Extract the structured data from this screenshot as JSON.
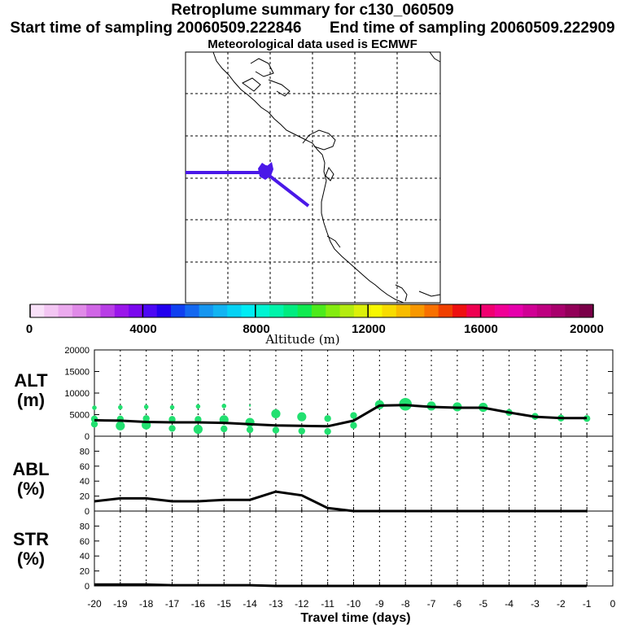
{
  "header": {
    "title": "Retroplume summary for c130_060509",
    "start_label": "Start time of sampling",
    "start_value": "20060509.222846",
    "end_label": "End time of sampling",
    "end_value": "20060509.222909",
    "met_line": "Meteorological data used is ECMWF"
  },
  "colorbar": {
    "title": "Altitude (m)",
    "min": 0,
    "max": 20000,
    "tick_labels": [
      "0",
      "4000",
      "8000",
      "12000",
      "16000",
      "20000"
    ],
    "colors": [
      "#f9e1f9",
      "#f3c6f3",
      "#ebaaee",
      "#e08ae8",
      "#d066e6",
      "#b83ee6",
      "#9a16ea",
      "#7a08ee",
      "#4c08f4",
      "#2200ee",
      "#1040f0",
      "#1468f0",
      "#1696f0",
      "#12b4f2",
      "#06d2f4",
      "#00ecf4",
      "#00f4d2",
      "#00f4aa",
      "#00ec80",
      "#10ea50",
      "#4cea1c",
      "#84ec10",
      "#b4ec10",
      "#dcf00a",
      "#f8f800",
      "#f8dc00",
      "#f8bc00",
      "#f89800",
      "#f87000",
      "#f04000",
      "#ee1010",
      "#ee0050",
      "#f00070",
      "#f00096",
      "#e600ac",
      "#d00094",
      "#be0080",
      "#a8006c",
      "#920058",
      "#7a0048"
    ]
  },
  "map": {
    "trajectory_color": "#4a18e8"
  },
  "chart_data": [
    {
      "type": "scatter",
      "panel": "ALT",
      "ylabel_line1": "ALT",
      "ylabel_line2": "(m)",
      "ylim": [
        0,
        20000
      ],
      "yticks": [
        0,
        5000,
        10000,
        15000,
        20000
      ],
      "xlim": [
        -20,
        0
      ],
      "median_line_color": "#000000",
      "dot_color": "#22e070",
      "line": {
        "x": [
          -20,
          -19,
          -18,
          -17,
          -16,
          -15,
          -14,
          -13,
          -12,
          -11,
          -10,
          -9,
          -8,
          -7,
          -6,
          -5,
          -4,
          -3,
          -2,
          -1
        ],
        "y": [
          3700,
          3600,
          3300,
          3200,
          3200,
          3100,
          2800,
          2500,
          2400,
          2300,
          3600,
          7100,
          7200,
          6800,
          6600,
          6600,
          5500,
          4500,
          4200,
          4200
        ]
      },
      "points": [
        {
          "x": -20,
          "y": 6600,
          "s": 1
        },
        {
          "x": -20,
          "y": 4000,
          "s": 2
        },
        {
          "x": -20,
          "y": 2800,
          "s": 2
        },
        {
          "x": -19,
          "y": 6700,
          "s": 1
        },
        {
          "x": -19,
          "y": 4000,
          "s": 2
        },
        {
          "x": -19,
          "y": 2400,
          "s": 3
        },
        {
          "x": -18,
          "y": 6800,
          "s": 1
        },
        {
          "x": -18,
          "y": 4100,
          "s": 2
        },
        {
          "x": -18,
          "y": 2600,
          "s": 3
        },
        {
          "x": -17,
          "y": 6700,
          "s": 1
        },
        {
          "x": -17,
          "y": 3900,
          "s": 2
        },
        {
          "x": -17,
          "y": 1800,
          "s": 2
        },
        {
          "x": -16,
          "y": 6900,
          "s": 1
        },
        {
          "x": -16,
          "y": 3900,
          "s": 2
        },
        {
          "x": -16,
          "y": 1600,
          "s": 3
        },
        {
          "x": -15,
          "y": 7000,
          "s": 1
        },
        {
          "x": -15,
          "y": 3800,
          "s": 3
        },
        {
          "x": -15,
          "y": 1700,
          "s": 2
        },
        {
          "x": -14,
          "y": 7100,
          "s": 0
        },
        {
          "x": -14,
          "y": 3200,
          "s": 3
        },
        {
          "x": -14,
          "y": 1500,
          "s": 2
        },
        {
          "x": -13,
          "y": 5200,
          "s": 3
        },
        {
          "x": -13,
          "y": 1400,
          "s": 2
        },
        {
          "x": -12,
          "y": 4500,
          "s": 3
        },
        {
          "x": -12,
          "y": 1200,
          "s": 2
        },
        {
          "x": -11,
          "y": 4100,
          "s": 2
        },
        {
          "x": -11,
          "y": 1100,
          "s": 2
        },
        {
          "x": -10,
          "y": 4800,
          "s": 2
        },
        {
          "x": -10,
          "y": 2500,
          "s": 2
        },
        {
          "x": -9,
          "y": 7300,
          "s": 3
        },
        {
          "x": -8,
          "y": 7400,
          "s": 4
        },
        {
          "x": -7,
          "y": 7000,
          "s": 3
        },
        {
          "x": -6,
          "y": 6800,
          "s": 3
        },
        {
          "x": -5,
          "y": 6700,
          "s": 3
        },
        {
          "x": -4,
          "y": 5500,
          "s": 2
        },
        {
          "x": -3,
          "y": 4600,
          "s": 2
        },
        {
          "x": -2,
          "y": 4200,
          "s": 2
        },
        {
          "x": -1,
          "y": 4100,
          "s": 2
        }
      ]
    },
    {
      "type": "line",
      "panel": "ABL",
      "ylabel_line1": "ABL",
      "ylabel_line2": "(%)",
      "ylim": [
        0,
        100
      ],
      "yticks": [
        0,
        20,
        40,
        60,
        80
      ],
      "xlim": [
        -20,
        0
      ],
      "x": [
        -20,
        -19,
        -18,
        -17,
        -16,
        -15,
        -14,
        -13,
        -12,
        -11,
        -10,
        -9,
        -8,
        -7,
        -6,
        -5,
        -4,
        -3,
        -2,
        -1
      ],
      "y": [
        13,
        17,
        17,
        13,
        13,
        15,
        15,
        26,
        21,
        4,
        0,
        0,
        0,
        0,
        0,
        0,
        0,
        0,
        0,
        0
      ]
    },
    {
      "type": "line",
      "panel": "STR",
      "ylabel_line1": "STR",
      "ylabel_line2": "(%)",
      "ylim": [
        0,
        100
      ],
      "yticks": [
        0,
        20,
        40,
        60,
        80
      ],
      "xlim": [
        -20,
        0
      ],
      "x": [
        -20,
        -19,
        -18,
        -17,
        -16,
        -15,
        -14,
        -13,
        -12,
        -11,
        -10,
        -9,
        -8,
        -7,
        -6,
        -5,
        -4,
        -3,
        -2,
        -1
      ],
      "y": [
        2,
        2,
        2,
        1,
        1,
        1,
        1,
        0,
        0,
        0,
        0,
        0,
        0,
        0,
        0,
        0,
        0,
        0,
        0,
        0
      ]
    }
  ],
  "x_axis": {
    "title": "Travel time (days)",
    "ticks": [
      -20,
      -19,
      -18,
      -17,
      -16,
      -15,
      -14,
      -13,
      -12,
      -11,
      -10,
      -9,
      -8,
      -7,
      -6,
      -5,
      -4,
      -3,
      -2,
      -1,
      0
    ],
    "tick_labels": [
      "-20",
      "-19",
      "-18",
      "-17",
      "-16",
      "-15",
      "-14",
      "-13",
      "-12",
      "-11",
      "-10",
      "-9",
      "-8",
      "-7",
      "-6",
      "-5",
      "-4",
      "-3",
      "-2",
      "-1",
      "0"
    ]
  }
}
